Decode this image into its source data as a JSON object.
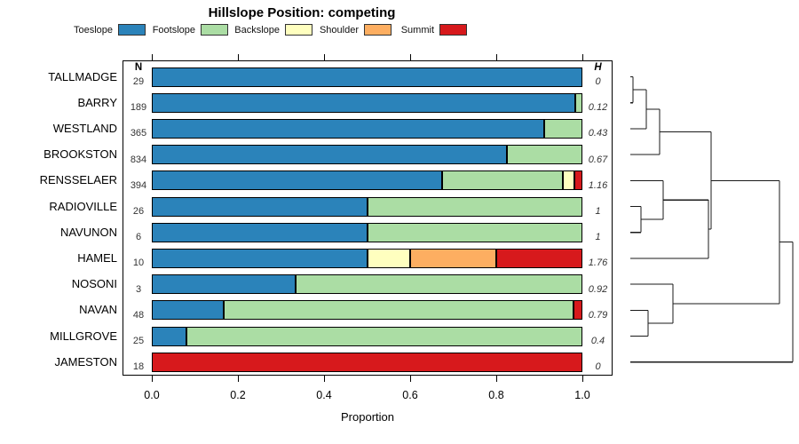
{
  "title": "Hillslope Position: competing",
  "columns": {
    "n_header": "N",
    "h_header": "H"
  },
  "axis": {
    "xlabel": "Proportion",
    "ticks": [
      "0.0",
      "0.2",
      "0.4",
      "0.6",
      "0.8",
      "1.0"
    ]
  },
  "legend": [
    {
      "label": "Toeslope",
      "color": "#2B83BA"
    },
    {
      "label": "Footslope",
      "color": "#ABDDA4"
    },
    {
      "label": "Backslope",
      "color": "#FFFFBF"
    },
    {
      "label": "Shoulder",
      "color": "#FDAE61"
    },
    {
      "label": "Summit",
      "color": "#D7191C"
    }
  ],
  "chart_data": {
    "type": "bar",
    "stacked": true,
    "orientation": "horizontal",
    "title": "Hillslope Position: competing",
    "xlabel": "Proportion",
    "xlim": [
      0,
      1
    ],
    "categories": [
      "TALLMADGE",
      "BARRY",
      "WESTLAND",
      "BROOKSTON",
      "RENSSELAER",
      "RADIOVILLE",
      "NAVUNON",
      "HAMEL",
      "NOSONI",
      "NAVAN",
      "MILLGROVE",
      "JAMESTON"
    ],
    "n_values": [
      "29",
      "189",
      "365",
      "834",
      "394",
      "26",
      "6",
      "10",
      "3",
      "48",
      "25",
      "18"
    ],
    "h_values": [
      "0",
      "0.12",
      "0.43",
      "0.67",
      "1.16",
      "1",
      "1",
      "1.76",
      "0.92",
      "0.79",
      "0.4",
      "0"
    ],
    "series": [
      {
        "name": "Toeslope",
        "color": "#2B83BA",
        "values": [
          1,
          0.983,
          0.912,
          0.825,
          0.675,
          0.5,
          0.5,
          0.5,
          0.333,
          0.167,
          0.08,
          0
        ]
      },
      {
        "name": "Footslope",
        "color": "#ABDDA4",
        "values": [
          0,
          0.017,
          0.088,
          0.175,
          0.279,
          0.5,
          0.5,
          0,
          0.667,
          0.812,
          0.92,
          0
        ]
      },
      {
        "name": "Backslope",
        "color": "#FFFFBF",
        "values": [
          0,
          0,
          0,
          0,
          0.028,
          0,
          0,
          0.1,
          0,
          0,
          0,
          0
        ]
      },
      {
        "name": "Shoulder",
        "color": "#FDAE61",
        "values": [
          0,
          0,
          0,
          0,
          0,
          0,
          0,
          0.2,
          0,
          0,
          0,
          0
        ]
      },
      {
        "name": "Summit",
        "color": "#D7191C",
        "values": [
          0,
          0,
          0,
          0,
          0.018,
          0,
          0,
          0.2,
          0,
          0.021,
          0,
          1
        ]
      }
    ]
  },
  "dendrogram": {
    "leaf_order": [
      "TALLMADGE",
      "BARRY",
      "WESTLAND",
      "BROOKSTON",
      "RENSSELAER",
      "RADIOVILLE",
      "NAVUNON",
      "HAMEL",
      "NOSONI",
      "NAVAN",
      "MILLGROVE",
      "JAMESTON"
    ],
    "leaf_x": 710,
    "merges": [
      {
        "id": "N0",
        "a": "L0",
        "b": "L1",
        "x": 713
      },
      {
        "id": "N1",
        "a": "N0",
        "b": "L2",
        "x": 728
      },
      {
        "id": "N2",
        "a": "N1",
        "b": "L3",
        "x": 743
      },
      {
        "id": "N3",
        "a": "L5",
        "b": "L6",
        "x": 722
      },
      {
        "id": "N4",
        "a": "L4",
        "b": "N3",
        "x": 747
      },
      {
        "id": "N5",
        "a": "N4",
        "b": "L7",
        "x": 798
      },
      {
        "id": "N6",
        "a": "N2",
        "b": "N5",
        "x": 801
      },
      {
        "id": "N7",
        "a": "L9",
        "b": "L10",
        "x": 730
      },
      {
        "id": "N8",
        "a": "L8",
        "b": "N7",
        "x": 758
      },
      {
        "id": "N9",
        "a": "N6",
        "b": "N8",
        "x": 878
      },
      {
        "id": "N10",
        "a": "N9",
        "b": "L11",
        "x": 893
      }
    ]
  }
}
